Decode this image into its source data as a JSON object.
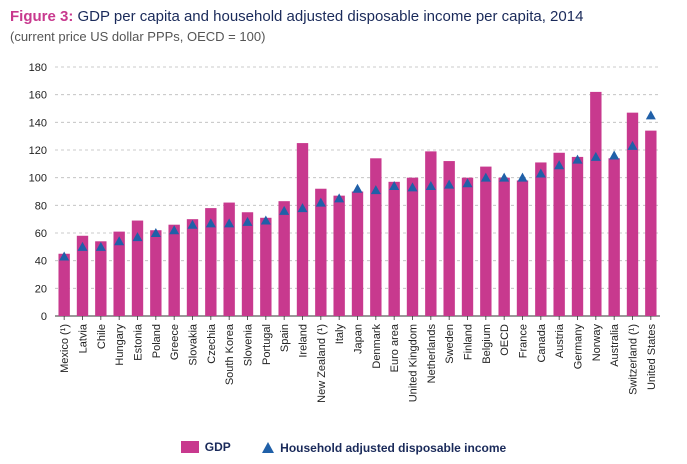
{
  "header": {
    "title_lead": "Figure 3:",
    "title_rest": "GDP per capita and household adjusted disposable income per capita, 2014",
    "subtitle": "(current price US dollar PPPs, OECD = 100)"
  },
  "colors": {
    "bar": "#c8398e",
    "marker": "#2060a8",
    "grid": "#bbbbbb"
  },
  "chart_data": {
    "type": "bar",
    "categories": [
      "Mexico (¹)",
      "Latvia",
      "Chile",
      "Hungary",
      "Estonia",
      "Poland",
      "Greece",
      "Slovakia",
      "Czechia",
      "South Korea",
      "Slovenia",
      "Portugal",
      "Spain",
      "Ireland",
      "New Zealand (¹)",
      "Italy",
      "Japan",
      "Denmark",
      "Euro area",
      "United Kingdom",
      "Netherlands",
      "Sweden",
      "Finland",
      "Belgium",
      "OECD",
      "France",
      "Canada",
      "Austria",
      "Germany",
      "Norway",
      "Australia",
      "Switzerland (¹)",
      "United States"
    ],
    "series": [
      {
        "name": "GDP",
        "kind": "bar",
        "values": [
          45,
          58,
          54,
          61,
          69,
          62,
          66,
          70,
          78,
          82,
          75,
          71,
          83,
          125,
          92,
          87,
          90,
          114,
          97,
          100,
          119,
          112,
          100,
          108,
          100,
          98,
          111,
          118,
          115,
          162,
          114,
          147,
          134
        ]
      },
      {
        "name": "Household adjusted disposable income",
        "kind": "marker",
        "values": [
          43,
          50,
          50,
          54,
          57,
          60,
          62,
          66,
          67,
          67,
          68,
          69,
          76,
          78,
          82,
          85,
          92,
          91,
          94,
          93,
          94,
          95,
          96,
          100,
          100,
          100,
          103,
          109,
          113,
          115,
          116,
          123,
          145
        ]
      }
    ],
    "ylim": [
      0,
      180
    ],
    "yticks": [
      0,
      20,
      40,
      60,
      80,
      100,
      120,
      140,
      160,
      180
    ],
    "grid": true,
    "legend_position": "bottom"
  }
}
